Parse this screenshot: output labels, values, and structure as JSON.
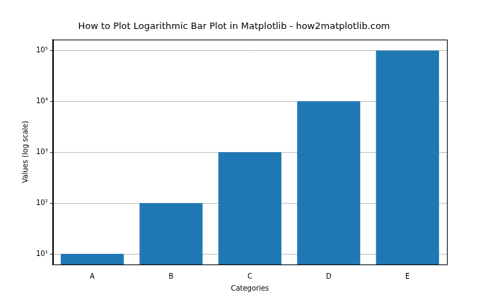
{
  "chart_data": {
    "type": "bar",
    "title": "How to Plot Logarithmic Bar Plot in Matplotlib - how2matplotlib.com",
    "x_label": "Categories",
    "y_label": "Values (log scale)",
    "categories": [
      "A",
      "B",
      "C",
      "D",
      "E"
    ],
    "values": [
      10,
      100,
      1000,
      10000,
      100000
    ],
    "color": "#1f77b4",
    "log": "y",
    "ylim": [
      6.2,
      166000
    ],
    "yticks": [
      {
        "value": 10,
        "label": "10¹"
      },
      {
        "value": 100,
        "label": "10²"
      },
      {
        "value": 1000,
        "label": "10³"
      },
      {
        "value": 10000,
        "label": "10⁴"
      },
      {
        "value": 100000,
        "label": "10⁵"
      }
    ],
    "grid": true
  }
}
